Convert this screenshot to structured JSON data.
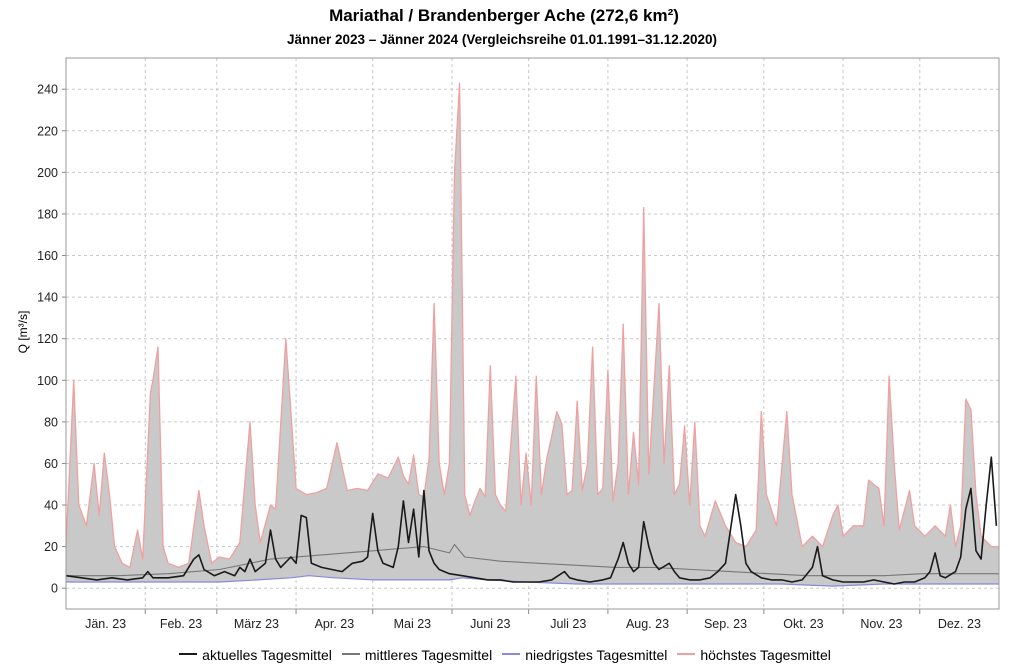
{
  "chart_data": {
    "type": "line",
    "title": "Mariathal / Brandenberger Ache (272,6 km²)",
    "subtitle": "Jänner 2023 – Jänner 2024 (Vergleichsreihe 01.01.1991–31.12.2020)",
    "ylabel": "Q [m³/s]",
    "xlabel": "",
    "ylim": [
      -10,
      255
    ],
    "yticks": [
      0,
      20,
      40,
      60,
      80,
      100,
      120,
      140,
      160,
      180,
      200,
      220,
      240
    ],
    "x_unit": "day_of_year_2023",
    "xlim": [
      0,
      365
    ],
    "month_labels": [
      "Jän. 23",
      "Feb. 23",
      "März 23",
      "Apr. 23",
      "Mai 23",
      "Juni 23",
      "Juli 23",
      "Aug. 23",
      "Sep. 23",
      "Okt. 23",
      "Nov. 23",
      "Dez. 23"
    ],
    "month_starts": [
      0,
      31,
      59,
      90,
      120,
      151,
      181,
      212,
      243,
      273,
      304,
      334,
      365
    ],
    "grid": true,
    "legend_position": "bottom",
    "series": [
      {
        "name": "aktuelles Tagesmittel",
        "color": "#1a1a1a",
        "points": [
          [
            0,
            6
          ],
          [
            6,
            5
          ],
          [
            12,
            4
          ],
          [
            18,
            5
          ],
          [
            24,
            4
          ],
          [
            30,
            5
          ],
          [
            32,
            8
          ],
          [
            34,
            5
          ],
          [
            40,
            5
          ],
          [
            46,
            6
          ],
          [
            50,
            14
          ],
          [
            52,
            16
          ],
          [
            54,
            9
          ],
          [
            58,
            6
          ],
          [
            62,
            8
          ],
          [
            66,
            6
          ],
          [
            68,
            10
          ],
          [
            70,
            8
          ],
          [
            72,
            14
          ],
          [
            74,
            8
          ],
          [
            78,
            12
          ],
          [
            80,
            28
          ],
          [
            82,
            14
          ],
          [
            84,
            10
          ],
          [
            88,
            15
          ],
          [
            90,
            12
          ],
          [
            92,
            35
          ],
          [
            94,
            34
          ],
          [
            96,
            12
          ],
          [
            100,
            10
          ],
          [
            104,
            9
          ],
          [
            108,
            8
          ],
          [
            112,
            12
          ],
          [
            116,
            13
          ],
          [
            118,
            15
          ],
          [
            120,
            36
          ],
          [
            122,
            18
          ],
          [
            124,
            12
          ],
          [
            128,
            10
          ],
          [
            130,
            20
          ],
          [
            132,
            42
          ],
          [
            134,
            22
          ],
          [
            136,
            38
          ],
          [
            138,
            15
          ],
          [
            140,
            47
          ],
          [
            142,
            18
          ],
          [
            144,
            12
          ],
          [
            146,
            9
          ],
          [
            150,
            7
          ],
          [
            155,
            6
          ],
          [
            160,
            5
          ],
          [
            165,
            4
          ],
          [
            170,
            4
          ],
          [
            175,
            3
          ],
          [
            180,
            3
          ],
          [
            185,
            3
          ],
          [
            190,
            4
          ],
          [
            195,
            8
          ],
          [
            197,
            5
          ],
          [
            200,
            4
          ],
          [
            205,
            3
          ],
          [
            210,
            4
          ],
          [
            213,
            5
          ],
          [
            216,
            14
          ],
          [
            218,
            22
          ],
          [
            220,
            12
          ],
          [
            222,
            8
          ],
          [
            224,
            10
          ],
          [
            226,
            32
          ],
          [
            228,
            20
          ],
          [
            230,
            12
          ],
          [
            232,
            9
          ],
          [
            236,
            12
          ],
          [
            238,
            8
          ],
          [
            240,
            5
          ],
          [
            244,
            4
          ],
          [
            248,
            4
          ],
          [
            252,
            5
          ],
          [
            255,
            8
          ],
          [
            258,
            12
          ],
          [
            262,
            45
          ],
          [
            264,
            30
          ],
          [
            266,
            12
          ],
          [
            268,
            8
          ],
          [
            272,
            5
          ],
          [
            276,
            4
          ],
          [
            280,
            4
          ],
          [
            284,
            3
          ],
          [
            288,
            4
          ],
          [
            292,
            10
          ],
          [
            294,
            20
          ],
          [
            296,
            6
          ],
          [
            300,
            4
          ],
          [
            304,
            3
          ],
          [
            308,
            3
          ],
          [
            312,
            3
          ],
          [
            316,
            4
          ],
          [
            320,
            3
          ],
          [
            324,
            2
          ],
          [
            328,
            3
          ],
          [
            332,
            3
          ],
          [
            336,
            5
          ],
          [
            338,
            8
          ],
          [
            340,
            17
          ],
          [
            342,
            6
          ],
          [
            344,
            5
          ],
          [
            348,
            8
          ],
          [
            350,
            15
          ],
          [
            352,
            38
          ],
          [
            354,
            48
          ],
          [
            356,
            18
          ],
          [
            358,
            14
          ],
          [
            360,
            40
          ],
          [
            362,
            63
          ],
          [
            364,
            30
          ]
        ]
      },
      {
        "name": "mittleres Tagesmittel",
        "color": "#777777",
        "points": [
          [
            0,
            6
          ],
          [
            20,
            6
          ],
          [
            40,
            7
          ],
          [
            60,
            9
          ],
          [
            80,
            14
          ],
          [
            100,
            16
          ],
          [
            120,
            18
          ],
          [
            140,
            20
          ],
          [
            150,
            17
          ],
          [
            152,
            21
          ],
          [
            156,
            15
          ],
          [
            170,
            13
          ],
          [
            185,
            12
          ],
          [
            200,
            11
          ],
          [
            215,
            10
          ],
          [
            230,
            10
          ],
          [
            245,
            9
          ],
          [
            260,
            8
          ],
          [
            275,
            7
          ],
          [
            290,
            6
          ],
          [
            305,
            6
          ],
          [
            320,
            6
          ],
          [
            335,
            7
          ],
          [
            350,
            7
          ],
          [
            365,
            7
          ]
        ]
      },
      {
        "name": "niedrigstes Tagesmittel",
        "color": "#8888dd",
        "points": [
          [
            0,
            3
          ],
          [
            30,
            3
          ],
          [
            60,
            3
          ],
          [
            75,
            4
          ],
          [
            88,
            5
          ],
          [
            95,
            6
          ],
          [
            105,
            5
          ],
          [
            120,
            4
          ],
          [
            140,
            4
          ],
          [
            150,
            4
          ],
          [
            155,
            5
          ],
          [
            165,
            4
          ],
          [
            180,
            3
          ],
          [
            200,
            2
          ],
          [
            220,
            2
          ],
          [
            240,
            2
          ],
          [
            260,
            2
          ],
          [
            280,
            2
          ],
          [
            300,
            1
          ],
          [
            320,
            2
          ],
          [
            340,
            2
          ],
          [
            365,
            2
          ]
        ]
      },
      {
        "name": "höchstes Tagesmittel",
        "color": "#f0a0a0",
        "points": [
          [
            0,
            20
          ],
          [
            3,
            100
          ],
          [
            5,
            40
          ],
          [
            8,
            30
          ],
          [
            11,
            60
          ],
          [
            13,
            35
          ],
          [
            15,
            65
          ],
          [
            17,
            45
          ],
          [
            19,
            20
          ],
          [
            22,
            12
          ],
          [
            25,
            10
          ],
          [
            28,
            28
          ],
          [
            30,
            14
          ],
          [
            33,
            94
          ],
          [
            34,
            100
          ],
          [
            36,
            116
          ],
          [
            38,
            20
          ],
          [
            40,
            12
          ],
          [
            44,
            10
          ],
          [
            48,
            12
          ],
          [
            52,
            47
          ],
          [
            54,
            30
          ],
          [
            57,
            12
          ],
          [
            60,
            15
          ],
          [
            64,
            14
          ],
          [
            68,
            22
          ],
          [
            72,
            80
          ],
          [
            74,
            40
          ],
          [
            76,
            22
          ],
          [
            80,
            40
          ],
          [
            82,
            38
          ],
          [
            86,
            120
          ],
          [
            88,
            85
          ],
          [
            90,
            48
          ],
          [
            94,
            45
          ],
          [
            98,
            46
          ],
          [
            102,
            48
          ],
          [
            106,
            70
          ],
          [
            110,
            47
          ],
          [
            114,
            48
          ],
          [
            118,
            47
          ],
          [
            122,
            55
          ],
          [
            126,
            53
          ],
          [
            130,
            63
          ],
          [
            132,
            54
          ],
          [
            134,
            50
          ],
          [
            136,
            64
          ],
          [
            138,
            45
          ],
          [
            140,
            44
          ],
          [
            142,
            62
          ],
          [
            144,
            137
          ],
          [
            146,
            60
          ],
          [
            148,
            45
          ],
          [
            150,
            60
          ],
          [
            152,
            200
          ],
          [
            154,
            243
          ],
          [
            156,
            45
          ],
          [
            158,
            35
          ],
          [
            160,
            42
          ],
          [
            162,
            48
          ],
          [
            164,
            44
          ],
          [
            166,
            107
          ],
          [
            168,
            45
          ],
          [
            170,
            40
          ],
          [
            172,
            37
          ],
          [
            176,
            102
          ],
          [
            178,
            40
          ],
          [
            180,
            65
          ],
          [
            182,
            40
          ],
          [
            184,
            102
          ],
          [
            186,
            45
          ],
          [
            188,
            62
          ],
          [
            190,
            73
          ],
          [
            192,
            85
          ],
          [
            194,
            79
          ],
          [
            196,
            45
          ],
          [
            198,
            47
          ],
          [
            200,
            90
          ],
          [
            202,
            47
          ],
          [
            204,
            60
          ],
          [
            206,
            116
          ],
          [
            208,
            45
          ],
          [
            210,
            48
          ],
          [
            212,
            105
          ],
          [
            214,
            42
          ],
          [
            216,
            60
          ],
          [
            218,
            127
          ],
          [
            220,
            45
          ],
          [
            222,
            75
          ],
          [
            224,
            50
          ],
          [
            226,
            183
          ],
          [
            228,
            55
          ],
          [
            230,
            96
          ],
          [
            232,
            137
          ],
          [
            234,
            60
          ],
          [
            236,
            107
          ],
          [
            238,
            45
          ],
          [
            240,
            50
          ],
          [
            242,
            78
          ],
          [
            244,
            40
          ],
          [
            246,
            80
          ],
          [
            248,
            30
          ],
          [
            250,
            25
          ],
          [
            254,
            42
          ],
          [
            258,
            30
          ],
          [
            262,
            22
          ],
          [
            266,
            20
          ],
          [
            270,
            28
          ],
          [
            272,
            85
          ],
          [
            274,
            45
          ],
          [
            278,
            30
          ],
          [
            282,
            85
          ],
          [
            284,
            45
          ],
          [
            288,
            20
          ],
          [
            292,
            25
          ],
          [
            296,
            20
          ],
          [
            300,
            35
          ],
          [
            302,
            40
          ],
          [
            304,
            25
          ],
          [
            308,
            30
          ],
          [
            312,
            30
          ],
          [
            314,
            52
          ],
          [
            316,
            50
          ],
          [
            318,
            48
          ],
          [
            320,
            30
          ],
          [
            322,
            102
          ],
          [
            324,
            60
          ],
          [
            326,
            28
          ],
          [
            330,
            47
          ],
          [
            332,
            30
          ],
          [
            336,
            25
          ],
          [
            340,
            30
          ],
          [
            344,
            25
          ],
          [
            346,
            40
          ],
          [
            348,
            20
          ],
          [
            350,
            30
          ],
          [
            352,
            91
          ],
          [
            354,
            86
          ],
          [
            356,
            45
          ],
          [
            358,
            25
          ],
          [
            362,
            20
          ],
          [
            365,
            20
          ]
        ]
      }
    ]
  }
}
